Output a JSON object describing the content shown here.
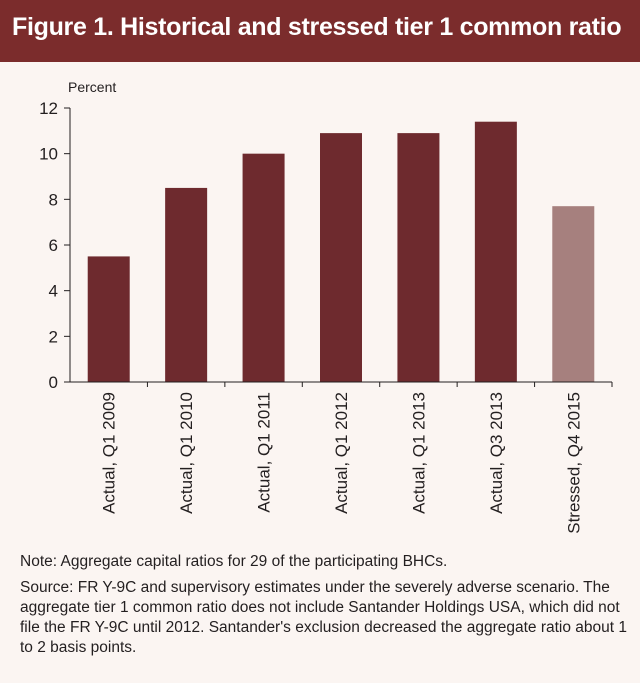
{
  "figure": {
    "title": "Figure 1. Historical and stressed tier 1 common ratio"
  },
  "colors": {
    "header_bg": "#7b2c2c",
    "actual_bar": "#6e2a2e",
    "stressed_bar": "#a6807e"
  },
  "chart_data": {
    "type": "bar",
    "title": "Figure 1. Historical and stressed tier 1 common ratio",
    "ylabel": "Percent",
    "xlabel": "",
    "ylim": [
      0,
      12
    ],
    "yticks": [
      0,
      2,
      4,
      6,
      8,
      10,
      12
    ],
    "categories": [
      "Actual, Q1 2009",
      "Actual, Q1 2010",
      "Actual, Q1 2011",
      "Actual, Q1 2012",
      "Actual, Q1 2013",
      "Actual, Q3 2013",
      "Stressed, Q4 2015"
    ],
    "values": [
      5.5,
      8.5,
      10.0,
      10.9,
      10.9,
      11.4,
      7.7
    ],
    "bar_kinds": [
      "actual",
      "actual",
      "actual",
      "actual",
      "actual",
      "actual",
      "stressed"
    ]
  },
  "notes": {
    "note": "Note: Aggregate capital ratios for 29 of the participating BHCs.",
    "source": "Source: FR Y-9C and supervisory estimates under the severely adverse scenario. The aggregate tier 1 common ratio does not include Santander Holdings USA, which did not file the FR Y-9C until 2012. Santander's exclusion decreased the aggregate ratio about 1 to 2 basis points."
  }
}
